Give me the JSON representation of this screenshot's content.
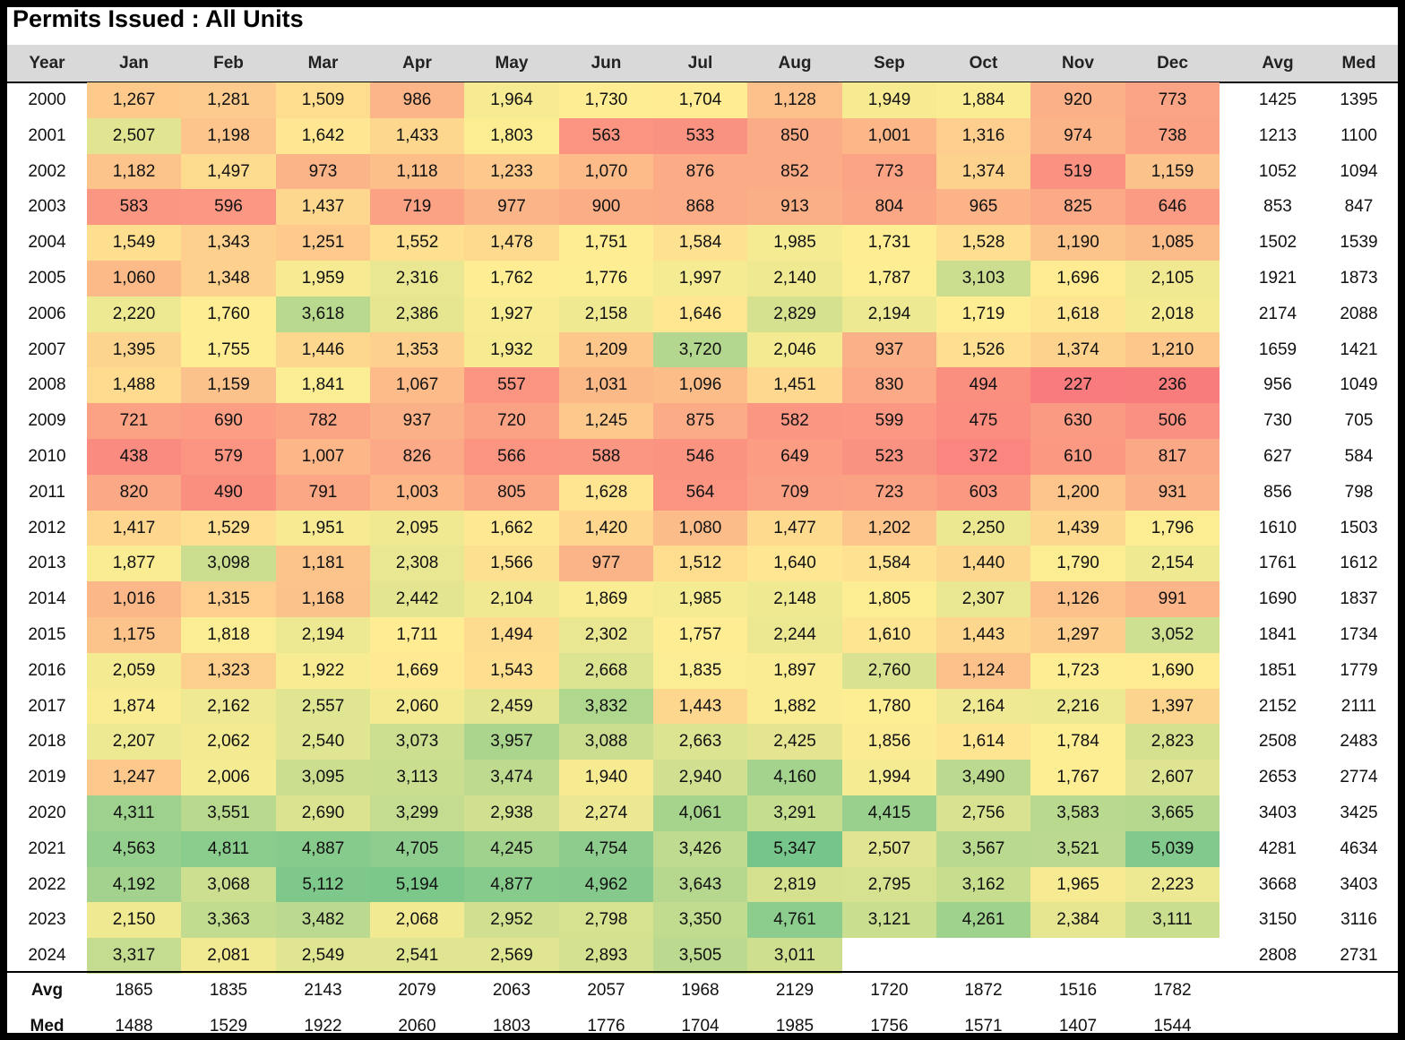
{
  "title": "Permits Issued : All Units",
  "columns": [
    "Year",
    "Jan",
    "Feb",
    "Mar",
    "Apr",
    "May",
    "Jun",
    "Jul",
    "Aug",
    "Sep",
    "Oct",
    "Nov",
    "Dec",
    "Avg",
    "Med"
  ],
  "chart_data": {
    "type": "heatmap",
    "title": "Permits Issued : All Units",
    "x": [
      "Jan",
      "Feb",
      "Mar",
      "Apr",
      "May",
      "Jun",
      "Jul",
      "Aug",
      "Sep",
      "Oct",
      "Nov",
      "Dec"
    ],
    "y": [
      "2000",
      "2001",
      "2002",
      "2003",
      "2004",
      "2005",
      "2006",
      "2007",
      "2008",
      "2009",
      "2010",
      "2011",
      "2012",
      "2013",
      "2014",
      "2015",
      "2016",
      "2017",
      "2018",
      "2019",
      "2020",
      "2021",
      "2022",
      "2023",
      "2024"
    ],
    "values": [
      [
        1267,
        1281,
        1509,
        986,
        1964,
        1730,
        1704,
        1128,
        1949,
        1884,
        920,
        773
      ],
      [
        2507,
        1198,
        1642,
        1433,
        1803,
        563,
        533,
        850,
        1001,
        1316,
        974,
        738
      ],
      [
        1182,
        1497,
        973,
        1118,
        1233,
        1070,
        876,
        852,
        773,
        1374,
        519,
        1159
      ],
      [
        583,
        596,
        1437,
        719,
        977,
        900,
        868,
        913,
        804,
        965,
        825,
        646
      ],
      [
        1549,
        1343,
        1251,
        1552,
        1478,
        1751,
        1584,
        1985,
        1731,
        1528,
        1190,
        1085
      ],
      [
        1060,
        1348,
        1959,
        2316,
        1762,
        1776,
        1997,
        2140,
        1787,
        3103,
        1696,
        2105
      ],
      [
        2220,
        1760,
        3618,
        2386,
        1927,
        2158,
        1646,
        2829,
        2194,
        1719,
        1618,
        2018
      ],
      [
        1395,
        1755,
        1446,
        1353,
        1932,
        1209,
        3720,
        2046,
        937,
        1526,
        1374,
        1210
      ],
      [
        1488,
        1159,
        1841,
        1067,
        557,
        1031,
        1096,
        1451,
        830,
        494,
        227,
        236
      ],
      [
        721,
        690,
        782,
        937,
        720,
        1245,
        875,
        582,
        599,
        475,
        630,
        506
      ],
      [
        438,
        579,
        1007,
        826,
        566,
        588,
        546,
        649,
        523,
        372,
        610,
        817
      ],
      [
        820,
        490,
        791,
        1003,
        805,
        1628,
        564,
        709,
        723,
        603,
        1200,
        931
      ],
      [
        1417,
        1529,
        1951,
        2095,
        1662,
        1420,
        1080,
        1477,
        1202,
        2250,
        1439,
        1796
      ],
      [
        1877,
        3098,
        1181,
        2308,
        1566,
        977,
        1512,
        1640,
        1584,
        1440,
        1790,
        2154
      ],
      [
        1016,
        1315,
        1168,
        2442,
        2104,
        1869,
        1985,
        2148,
        1805,
        2307,
        1126,
        991
      ],
      [
        1175,
        1818,
        2194,
        1711,
        1494,
        2302,
        1757,
        2244,
        1610,
        1443,
        1297,
        3052
      ],
      [
        2059,
        1323,
        1922,
        1669,
        1543,
        2668,
        1835,
        1897,
        2760,
        1124,
        1723,
        1690
      ],
      [
        1874,
        2162,
        2557,
        2060,
        2459,
        3832,
        1443,
        1882,
        1780,
        2164,
        2216,
        1397
      ],
      [
        2207,
        2062,
        2540,
        3073,
        3957,
        3088,
        2663,
        2425,
        1856,
        1614,
        1784,
        2823
      ],
      [
        1247,
        2006,
        3095,
        3113,
        3474,
        1940,
        2940,
        4160,
        1994,
        3490,
        1767,
        2607
      ],
      [
        4311,
        3551,
        2690,
        3299,
        2938,
        2274,
        4061,
        3291,
        4415,
        2756,
        3583,
        3665
      ],
      [
        4563,
        4811,
        4887,
        4705,
        4245,
        4754,
        3426,
        5347,
        2507,
        3567,
        3521,
        5039
      ],
      [
        4192,
        3068,
        5112,
        5194,
        4877,
        4962,
        3643,
        2819,
        2795,
        3162,
        1965,
        2223
      ],
      [
        2150,
        3363,
        3482,
        2068,
        2952,
        2798,
        3350,
        4761,
        3121,
        4261,
        2384,
        3111
      ],
      [
        3317,
        2081,
        2549,
        2541,
        2569,
        2893,
        3505,
        3011,
        null,
        null,
        null,
        null
      ]
    ],
    "row_avg": [
      "1425",
      "1213",
      "1052",
      "853",
      "1502",
      "1921",
      "2174",
      "1659",
      "956",
      "730",
      "627",
      "856",
      "1610",
      "1761",
      "1690",
      "1841",
      "1851",
      "2152",
      "2508",
      "2653",
      "3403",
      "4281",
      "3668",
      "3150",
      "2808"
    ],
    "row_med": [
      "1395",
      "1100",
      "1094",
      "847",
      "1539",
      "1873",
      "2088",
      "1421",
      "1049",
      "705",
      "584",
      "798",
      "1503",
      "1612",
      "1837",
      "1734",
      "1779",
      "2111",
      "2483",
      "2774",
      "3425",
      "4634",
      "3403",
      "3116",
      "2731"
    ],
    "footer": [
      {
        "label": "Avg",
        "values": [
          "1865",
          "1835",
          "2143",
          "2079",
          "2063",
          "2057",
          "1968",
          "2129",
          "1720",
          "1872",
          "1516",
          "1782"
        ]
      },
      {
        "label": "Med",
        "values": [
          "1488",
          "1529",
          "1922",
          "2060",
          "1803",
          "1776",
          "1704",
          "1985",
          "1756",
          "1571",
          "1407",
          "1544"
        ]
      }
    ],
    "color_scale": {
      "low": "#f8696b",
      "mid": "#ffeb84",
      "high": "#63be7b"
    }
  }
}
